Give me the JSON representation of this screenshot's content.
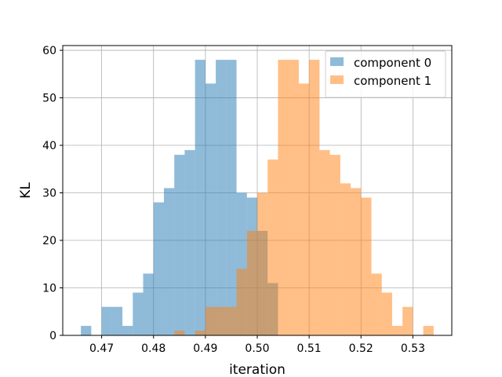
{
  "chart_data": {
    "type": "bar",
    "subtype": "overlapping-histogram",
    "xlabel": "iteration",
    "ylabel": "KL",
    "xlim": [
      0.4625,
      0.5375
    ],
    "ylim": [
      0,
      61
    ],
    "xticks": [
      0.47,
      0.48,
      0.49,
      0.5,
      0.51,
      0.52,
      0.53
    ],
    "xtick_labels": [
      "0.47",
      "0.48",
      "0.49",
      "0.50",
      "0.51",
      "0.52",
      "0.53"
    ],
    "yticks": [
      0,
      10,
      20,
      30,
      40,
      50,
      60
    ],
    "ytick_labels": [
      "0",
      "10",
      "20",
      "30",
      "40",
      "50",
      "60"
    ],
    "grid": true,
    "legend_position": "top-right",
    "series": [
      {
        "name": "component 0",
        "color": "#1f77b4",
        "alpha": 0.5,
        "bin_edges": [
          0.466,
          0.468,
          0.47,
          0.472,
          0.474,
          0.476,
          0.478,
          0.48,
          0.482,
          0.484,
          0.486,
          0.488,
          0.49,
          0.492,
          0.494,
          0.496,
          0.498,
          0.5,
          0.502,
          0.504
        ],
        "counts": [
          2,
          0,
          6,
          6,
          2,
          9,
          13,
          28,
          31,
          38,
          39,
          58,
          53,
          58,
          58,
          30,
          29,
          22,
          11
        ]
      },
      {
        "name": "component 1",
        "color": "#ff7f0e",
        "alpha": 0.5,
        "bin_edges": [
          0.484,
          0.486,
          0.488,
          0.49,
          0.492,
          0.494,
          0.496,
          0.498,
          0.5,
          0.502,
          0.504,
          0.506,
          0.508,
          0.51,
          0.512,
          0.514,
          0.516,
          0.518,
          0.52,
          0.522,
          0.524,
          0.526,
          0.528,
          0.53,
          0.532,
          0.534
        ],
        "counts": [
          1,
          0,
          1,
          6,
          6,
          6,
          14,
          22,
          30,
          37,
          58,
          58,
          53,
          58,
          39,
          38,
          32,
          31,
          29,
          13,
          9,
          2,
          6,
          0,
          2
        ]
      }
    ]
  }
}
